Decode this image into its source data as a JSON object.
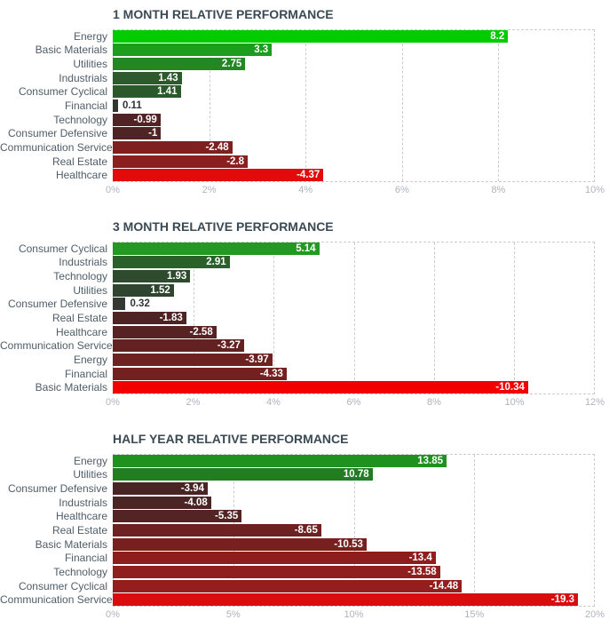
{
  "styles": {
    "title_color": "#3A4A55",
    "category_label_color": "#4E5D68",
    "tick_label_color": "#AEB4BC",
    "grid_color": "#CCCCCC",
    "value_label_inside_color": "#FFFFFF",
    "value_label_outside_color": "#333333",
    "max_green": "#00CC00",
    "max_red": "#E20A0A"
  },
  "chart_data": [
    {
      "type": "bar",
      "orientation": "horizontal",
      "title": "1 MONTH RELATIVE PERFORMANCE",
      "xlabel": "",
      "ylabel": "",
      "unit": "%",
      "xlim": [
        0,
        10
      ],
      "ticks": [
        "0%",
        "2%",
        "4%",
        "6%",
        "8%",
        "10%"
      ],
      "grid": "dashed-vertical",
      "bars": [
        {
          "category": "Energy",
          "value": 8.2,
          "display": "8.2",
          "color": "#00CC00"
        },
        {
          "category": "Basic Materials",
          "value": 3.3,
          "display": "3.3",
          "color": "#1E9C1E"
        },
        {
          "category": "Utilities",
          "value": 2.75,
          "display": "2.75",
          "color": "#238723"
        },
        {
          "category": "Industrials",
          "value": 1.43,
          "display": "1.43",
          "color": "#2C5A2C"
        },
        {
          "category": "Consumer Cyclical",
          "value": 1.41,
          "display": "1.41",
          "color": "#2C592C"
        },
        {
          "category": "Financial",
          "value": 0.11,
          "display": "0.11",
          "color": "#323732"
        },
        {
          "category": "Technology",
          "value": -0.99,
          "display": "-0.99",
          "color": "#502424"
        },
        {
          "category": "Consumer Defensive",
          "value": -1,
          "display": "-1",
          "color": "#4F2424"
        },
        {
          "category": "Communication Services",
          "value": -2.48,
          "display": "-2.48",
          "color": "#7E2020"
        },
        {
          "category": "Real Estate",
          "value": -2.8,
          "display": "-2.8",
          "color": "#8B1E1E"
        },
        {
          "category": "Healthcare",
          "value": -4.37,
          "display": "-4.37",
          "color": "#E20A0A"
        }
      ]
    },
    {
      "type": "bar",
      "orientation": "horizontal",
      "title": "3 MONTH RELATIVE PERFORMANCE",
      "xlabel": "",
      "ylabel": "",
      "unit": "%",
      "xlim": [
        0,
        12
      ],
      "ticks": [
        "0%",
        "2%",
        "4%",
        "6%",
        "8%",
        "10%",
        "12%"
      ],
      "grid": "dashed-vertical",
      "bars": [
        {
          "category": "Consumer Cyclical",
          "value": 5.14,
          "display": "5.14",
          "color": "#229A22"
        },
        {
          "category": "Industrials",
          "value": 2.91,
          "display": "2.91",
          "color": "#2A612A"
        },
        {
          "category": "Technology",
          "value": 1.93,
          "display": "1.93",
          "color": "#2E4B2E"
        },
        {
          "category": "Utilities",
          "value": 1.52,
          "display": "1.52",
          "color": "#304530"
        },
        {
          "category": "Consumer Defensive",
          "value": 0.32,
          "display": "0.32",
          "color": "#333833"
        },
        {
          "category": "Real Estate",
          "value": -1.83,
          "display": "-1.83",
          "color": "#4D2323"
        },
        {
          "category": "Healthcare",
          "value": -2.58,
          "display": "-2.58",
          "color": "#572222"
        },
        {
          "category": "Communication Services",
          "value": -3.27,
          "display": "-3.27",
          "color": "#632121"
        },
        {
          "category": "Energy",
          "value": -3.97,
          "display": "-3.97",
          "color": "#6E2121"
        },
        {
          "category": "Financial",
          "value": -4.33,
          "display": "-4.33",
          "color": "#732020"
        },
        {
          "category": "Basic Materials",
          "value": -10.34,
          "display": "-10.34",
          "color": "#F20000"
        }
      ]
    },
    {
      "type": "bar",
      "orientation": "horizontal",
      "title": "HALF YEAR RELATIVE PERFORMANCE",
      "xlabel": "",
      "ylabel": "",
      "unit": "%",
      "xlim": [
        0,
        20
      ],
      "ticks": [
        "0%",
        "5%",
        "10%",
        "15%",
        "20%"
      ],
      "grid": "dashed-vertical",
      "bars": [
        {
          "category": "Energy",
          "value": 13.85,
          "display": "13.85",
          "color": "#1E911E"
        },
        {
          "category": "Utilities",
          "value": 10.78,
          "display": "10.78",
          "color": "#227D22"
        },
        {
          "category": "Consumer Defensive",
          "value": -3.94,
          "display": "-3.94",
          "color": "#4A2424"
        },
        {
          "category": "Industrials",
          "value": -4.08,
          "display": "-4.08",
          "color": "#4B2424"
        },
        {
          "category": "Healthcare",
          "value": -5.35,
          "display": "-5.35",
          "color": "#542323"
        },
        {
          "category": "Real Estate",
          "value": -8.65,
          "display": "-8.65",
          "color": "#6D2121"
        },
        {
          "category": "Basic Materials",
          "value": -10.53,
          "display": "-10.53",
          "color": "#782020"
        },
        {
          "category": "Financial",
          "value": -13.4,
          "display": "-13.4",
          "color": "#8E1E1E"
        },
        {
          "category": "Technology",
          "value": -13.58,
          "display": "-13.58",
          "color": "#8F1E1E"
        },
        {
          "category": "Consumer Cyclical",
          "value": -14.48,
          "display": "-14.48",
          "color": "#941D1D"
        },
        {
          "category": "Communication Services",
          "value": -19.3,
          "display": "-19.3",
          "color": "#D90D0D"
        }
      ]
    }
  ]
}
